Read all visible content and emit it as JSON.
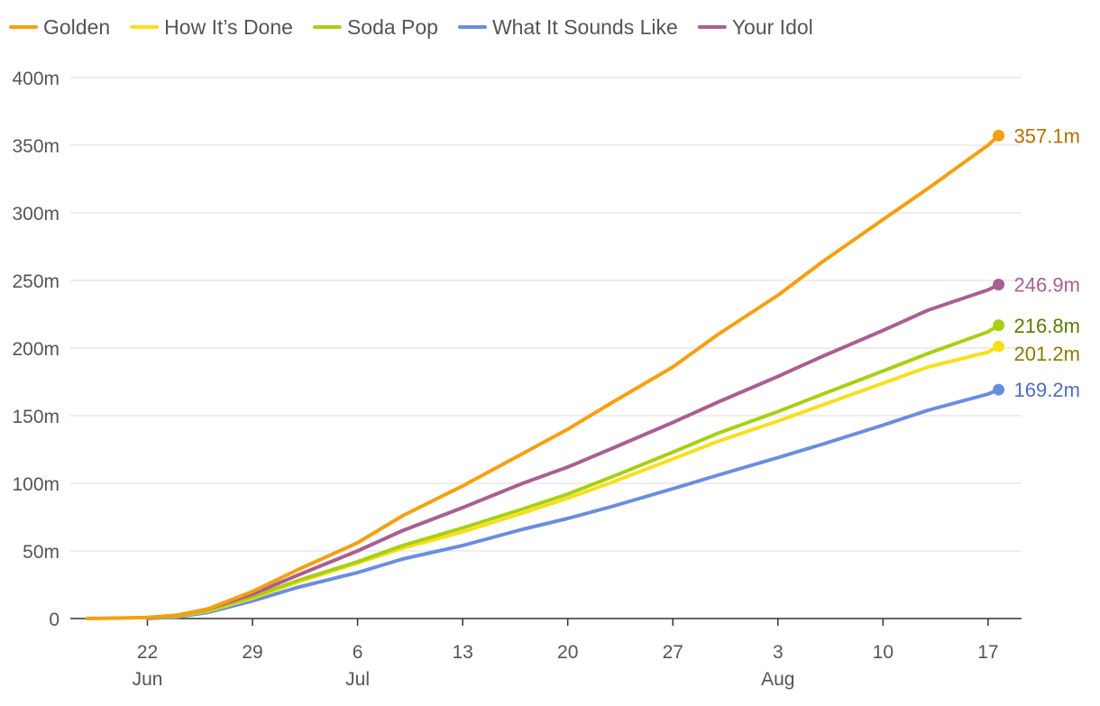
{
  "chart_data": {
    "type": "line",
    "title": "",
    "xlabel": "",
    "ylabel": "",
    "ylim": [
      0,
      400
    ],
    "y_ticks": [
      0,
      50,
      100,
      150,
      200,
      250,
      300,
      350,
      400
    ],
    "y_tick_labels": [
      "0",
      "50m",
      "100m",
      "150m",
      "200m",
      "250m",
      "300m",
      "350m",
      "400m"
    ],
    "x_ticks": [
      {
        "day": 0,
        "label": "22",
        "month": "Jun"
      },
      {
        "day": 7,
        "label": "29",
        "month": ""
      },
      {
        "day": 14,
        "label": "6",
        "month": "Jul"
      },
      {
        "day": 21,
        "label": "13",
        "month": ""
      },
      {
        "day": 28,
        "label": "20",
        "month": ""
      },
      {
        "day": 35,
        "label": "27",
        "month": ""
      },
      {
        "day": 42,
        "label": "3",
        "month": "Aug"
      },
      {
        "day": 49,
        "label": "10",
        "month": ""
      },
      {
        "day": 56,
        "label": "17",
        "month": ""
      }
    ],
    "xlim": [
      -5,
      58.2
    ],
    "legend_position": "top-left",
    "series": [
      {
        "name": "Golden",
        "color": "#f5a00f",
        "label_color": "#b86e00",
        "end_label": "357.1m",
        "points": [
          [
            -4,
            0
          ],
          [
            -2,
            0.3
          ],
          [
            0,
            0.8
          ],
          [
            2,
            2.5
          ],
          [
            4,
            7
          ],
          [
            7,
            20
          ],
          [
            10,
            36
          ],
          [
            14,
            56
          ],
          [
            17,
            76
          ],
          [
            21,
            98
          ],
          [
            25,
            122
          ],
          [
            28,
            140
          ],
          [
            31,
            160
          ],
          [
            35,
            186
          ],
          [
            38,
            210
          ],
          [
            42,
            239
          ],
          [
            45,
            264
          ],
          [
            49,
            295
          ],
          [
            52,
            318
          ],
          [
            56,
            350
          ],
          [
            56.7,
            357.1
          ]
        ]
      },
      {
        "name": "How It’s Done",
        "color": "#f7df1e",
        "label_color": "#8a7a00",
        "end_label": "201.2m",
        "points": [
          [
            0,
            0.2
          ],
          [
            2,
            1.8
          ],
          [
            4,
            5.5
          ],
          [
            7,
            15
          ],
          [
            10,
            27
          ],
          [
            14,
            41
          ],
          [
            17,
            52
          ],
          [
            21,
            64
          ],
          [
            25,
            78
          ],
          [
            28,
            89
          ],
          [
            31,
            101
          ],
          [
            35,
            118
          ],
          [
            38,
            131
          ],
          [
            42,
            146
          ],
          [
            45,
            158
          ],
          [
            49,
            174
          ],
          [
            52,
            186
          ],
          [
            56,
            197
          ],
          [
            56.7,
            201.2
          ]
        ]
      },
      {
        "name": "Soda Pop",
        "color": "#a8cf14",
        "label_color": "#5a7a00",
        "end_label": "216.8m",
        "points": [
          [
            0,
            0.2
          ],
          [
            2,
            2
          ],
          [
            4,
            6
          ],
          [
            7,
            16
          ],
          [
            10,
            28
          ],
          [
            14,
            42
          ],
          [
            17,
            54
          ],
          [
            21,
            67
          ],
          [
            25,
            81
          ],
          [
            28,
            92
          ],
          [
            31,
            105
          ],
          [
            35,
            123
          ],
          [
            38,
            137
          ],
          [
            42,
            153
          ],
          [
            45,
            166
          ],
          [
            49,
            183
          ],
          [
            52,
            196
          ],
          [
            56,
            212
          ],
          [
            56.7,
            216.8
          ]
        ]
      },
      {
        "name": "What It Sounds Like",
        "color": "#6b8de0",
        "label_color": "#4e6dcc",
        "end_label": "169.2m",
        "points": [
          [
            0,
            0.1
          ],
          [
            2,
            1.2
          ],
          [
            4,
            4.5
          ],
          [
            7,
            13
          ],
          [
            10,
            23
          ],
          [
            14,
            34
          ],
          [
            17,
            44
          ],
          [
            21,
            54
          ],
          [
            25,
            66
          ],
          [
            28,
            74
          ],
          [
            31,
            83
          ],
          [
            35,
            96
          ],
          [
            38,
            106
          ],
          [
            42,
            119
          ],
          [
            45,
            129
          ],
          [
            49,
            143
          ],
          [
            52,
            154
          ],
          [
            56,
            166
          ],
          [
            56.7,
            169.2
          ]
        ]
      },
      {
        "name": "Your Idol",
        "color": "#a95f92",
        "label_color": "#a95f92",
        "end_label": "246.9m",
        "points": [
          [
            0,
            0.3
          ],
          [
            2,
            2.5
          ],
          [
            4,
            7
          ],
          [
            7,
            18
          ],
          [
            10,
            32
          ],
          [
            14,
            50
          ],
          [
            17,
            65
          ],
          [
            21,
            82
          ],
          [
            25,
            100
          ],
          [
            28,
            112
          ],
          [
            31,
            126
          ],
          [
            35,
            145
          ],
          [
            38,
            160
          ],
          [
            42,
            179
          ],
          [
            45,
            194
          ],
          [
            49,
            213
          ],
          [
            52,
            228
          ],
          [
            56,
            243
          ],
          [
            56.7,
            246.9
          ]
        ]
      }
    ]
  }
}
